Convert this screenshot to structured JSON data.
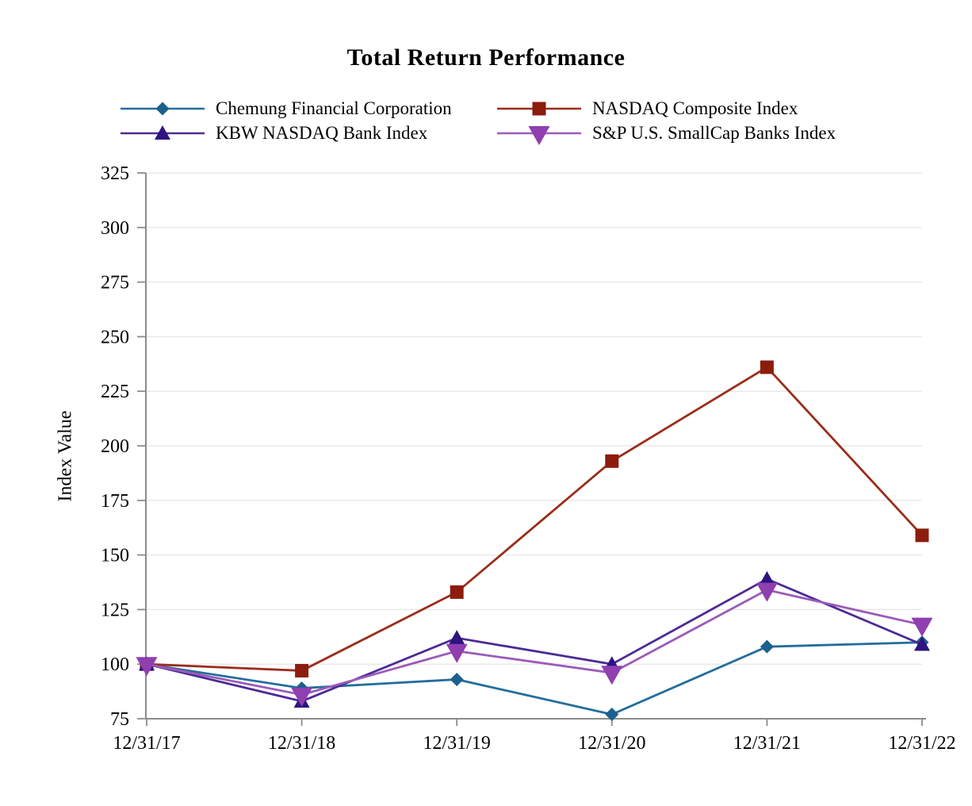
{
  "chart_data": {
    "type": "line",
    "title": "Total Return Performance",
    "ylabel": "Index Value",
    "xlabel": "",
    "categories": [
      "12/31/17",
      "12/31/18",
      "12/31/19",
      "12/31/20",
      "12/31/21",
      "12/31/22"
    ],
    "ylim": [
      75,
      325
    ],
    "y_ticks": [
      75,
      100,
      125,
      150,
      175,
      200,
      225,
      250,
      275,
      300,
      325
    ],
    "grid": "horizontal-light",
    "legend_position": "top-two-columns",
    "axis_color": "#8C8C8C",
    "gridline_color": "#E9E9E9",
    "series": [
      {
        "name": "Chemung Financial Corporation",
        "marker": "diamond",
        "color": "#1D5F8D",
        "line_color": "#236E9B",
        "values": [
          100,
          89,
          93,
          77,
          108,
          110
        ]
      },
      {
        "name": "NASDAQ Composite Index",
        "marker": "square",
        "color": "#8C1C0E",
        "line_color": "#9A2D1B",
        "values": [
          100,
          97,
          133,
          193,
          236,
          159
        ]
      },
      {
        "name": "KBW NASDAQ Bank Index",
        "marker": "triangle-up",
        "color": "#2D1480",
        "line_color": "#4C2B96",
        "values": [
          100,
          83,
          112,
          100,
          139,
          109
        ]
      },
      {
        "name": "S&P U.S. SmallCap Banks Index",
        "marker": "triangle-down",
        "color": "#8F3FAF",
        "line_color": "#9C5BB8",
        "values": [
          100,
          86,
          106,
          96,
          134,
          118
        ]
      }
    ]
  }
}
